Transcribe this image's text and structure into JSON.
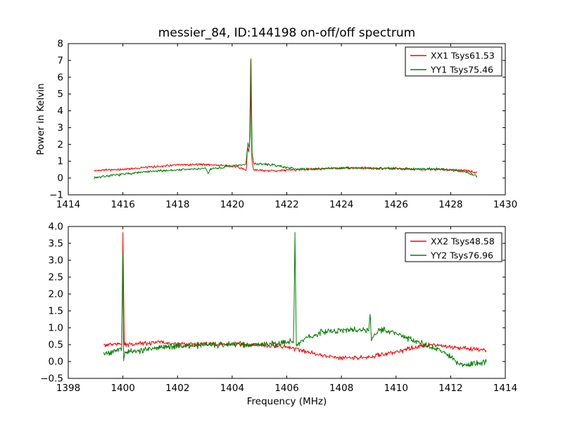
{
  "figure": {
    "background": "#ffffff",
    "title": "messier_84, ID:144198 on-off/off spectrum"
  },
  "chart_data": [
    {
      "type": "line",
      "title": "messier_84, ID:144198 on-off/off spectrum",
      "xlabel": "",
      "ylabel": "Power in Kelvin",
      "xlim": [
        1414,
        1430
      ],
      "ylim": [
        -1,
        8
      ],
      "xticks": [
        1414,
        1416,
        1418,
        1420,
        1422,
        1424,
        1426,
        1428,
        1430
      ],
      "xtick_labels": [
        "1414",
        "1416",
        "1418",
        "1420",
        "1422",
        "1424",
        "1426",
        "1428",
        "1430"
      ],
      "yticks": [
        -1,
        0,
        1,
        2,
        3,
        4,
        5,
        6,
        7,
        8
      ],
      "ytick_labels": [
        "−1",
        "0",
        "1",
        "2",
        "3",
        "4",
        "5",
        "6",
        "7",
        "8"
      ],
      "grid": false,
      "legend_position": "upper right",
      "sample_step": 0.02,
      "series": [
        {
          "name": "XX1 Tsys61.53",
          "color": "#ff0000",
          "noise": 0.05,
          "seed": 42,
          "keypoints": [
            [
              1414.95,
              0.42
            ],
            [
              1415.3,
              0.5
            ],
            [
              1415.8,
              0.48
            ],
            [
              1416.3,
              0.56
            ],
            [
              1417.0,
              0.65
            ],
            [
              1417.6,
              0.74
            ],
            [
              1418.2,
              0.78
            ],
            [
              1418.8,
              0.82
            ],
            [
              1419.3,
              0.78
            ],
            [
              1419.8,
              0.74
            ],
            [
              1420.2,
              0.66
            ],
            [
              1420.45,
              0.5
            ],
            [
              1420.52,
              0.42
            ],
            [
              1420.56,
              1.85,
              1
            ],
            [
              1420.6,
              1.55,
              1
            ],
            [
              1420.64,
              2.0,
              1
            ],
            [
              1420.68,
              7.0,
              1
            ],
            [
              1420.72,
              1.2,
              1
            ],
            [
              1420.78,
              0.5
            ],
            [
              1421.2,
              0.42
            ],
            [
              1421.8,
              0.45
            ],
            [
              1422.5,
              0.5
            ],
            [
              1423.2,
              0.55
            ],
            [
              1424.0,
              0.6
            ],
            [
              1424.8,
              0.58
            ],
            [
              1425.5,
              0.55
            ],
            [
              1426.3,
              0.55
            ],
            [
              1427.0,
              0.5
            ],
            [
              1427.8,
              0.52
            ],
            [
              1428.5,
              0.45
            ],
            [
              1428.95,
              0.32
            ]
          ]
        },
        {
          "name": "YY1 Tsys75.46",
          "color": "#008000",
          "noise": 0.055,
          "seed": 7,
          "keypoints": [
            [
              1414.95,
              0.02
            ],
            [
              1415.4,
              0.12
            ],
            [
              1415.9,
              0.2
            ],
            [
              1416.4,
              0.3
            ],
            [
              1417.0,
              0.38
            ],
            [
              1417.6,
              0.45
            ],
            [
              1418.2,
              0.5
            ],
            [
              1418.8,
              0.55
            ],
            [
              1419.05,
              0.55
            ],
            [
              1419.12,
              0.25,
              1
            ],
            [
              1419.2,
              0.55
            ],
            [
              1419.6,
              0.62
            ],
            [
              1420.0,
              0.7
            ],
            [
              1420.3,
              0.75
            ],
            [
              1420.5,
              0.8
            ],
            [
              1420.58,
              2.1,
              1
            ],
            [
              1420.62,
              1.8,
              1
            ],
            [
              1420.66,
              2.45,
              1
            ],
            [
              1420.69,
              7.1,
              1
            ],
            [
              1420.73,
              1.5,
              1
            ],
            [
              1420.8,
              0.85
            ],
            [
              1421.2,
              0.82
            ],
            [
              1421.6,
              0.75
            ],
            [
              1422.0,
              0.62
            ],
            [
              1422.6,
              0.52
            ],
            [
              1423.4,
              0.55
            ],
            [
              1424.2,
              0.6
            ],
            [
              1425.0,
              0.6
            ],
            [
              1425.8,
              0.58
            ],
            [
              1426.6,
              0.55
            ],
            [
              1427.4,
              0.55
            ],
            [
              1428.0,
              0.48
            ],
            [
              1428.6,
              0.35
            ],
            [
              1428.95,
              0.12
            ]
          ]
        }
      ]
    },
    {
      "type": "line",
      "title": "",
      "xlabel": "Frequency (MHz)",
      "ylabel": "",
      "xlim": [
        1398,
        1414
      ],
      "ylim": [
        -0.5,
        4.0
      ],
      "xticks": [
        1398,
        1400,
        1402,
        1404,
        1406,
        1408,
        1410,
        1412,
        1414
      ],
      "xtick_labels": [
        "1398",
        "1400",
        "1402",
        "1404",
        "1406",
        "1408",
        "1410",
        "1412",
        "1414"
      ],
      "yticks": [
        -0.5,
        0.0,
        0.5,
        1.0,
        1.5,
        2.0,
        2.5,
        3.0,
        3.5,
        4.0
      ],
      "ytick_labels": [
        "−0.5",
        "0.0",
        "0.5",
        "1.0",
        "1.5",
        "2.0",
        "2.5",
        "3.0",
        "3.5",
        "4.0"
      ],
      "grid": false,
      "legend_position": "upper right",
      "sample_step": 0.02,
      "series": [
        {
          "name": "XX2 Tsys48.58",
          "color": "#ff0000",
          "noise": 0.05,
          "seed": 99,
          "keypoints": [
            [
              1399.3,
              0.5
            ],
            [
              1399.96,
              0.52
            ],
            [
              1400.0,
              3.82,
              1
            ],
            [
              1400.05,
              0.5,
              1
            ],
            [
              1400.6,
              0.52
            ],
            [
              1401.3,
              0.58
            ],
            [
              1402.0,
              0.52
            ],
            [
              1402.7,
              0.5
            ],
            [
              1403.4,
              0.52
            ],
            [
              1404.1,
              0.52
            ],
            [
              1404.8,
              0.5
            ],
            [
              1405.4,
              0.48
            ],
            [
              1406.0,
              0.42
            ],
            [
              1406.6,
              0.32
            ],
            [
              1407.2,
              0.2
            ],
            [
              1407.8,
              0.12
            ],
            [
              1408.4,
              0.1
            ],
            [
              1409.0,
              0.13
            ],
            [
              1409.6,
              0.22
            ],
            [
              1410.2,
              0.32
            ],
            [
              1410.8,
              0.45
            ],
            [
              1411.3,
              0.5
            ],
            [
              1411.8,
              0.45
            ],
            [
              1412.3,
              0.4
            ],
            [
              1412.8,
              0.38
            ],
            [
              1413.3,
              0.33
            ]
          ]
        },
        {
          "name": "YY2 Tsys76.96",
          "color": "#008000",
          "noise": 0.07,
          "seed": 5,
          "keypoints": [
            [
              1399.3,
              0.22
            ],
            [
              1399.7,
              0.3
            ],
            [
              1399.96,
              0.42
            ],
            [
              1400.0,
              3.2,
              1
            ],
            [
              1400.03,
              0.02,
              1
            ],
            [
              1400.1,
              0.3
            ],
            [
              1400.6,
              0.32
            ],
            [
              1401.2,
              0.42
            ],
            [
              1401.9,
              0.45
            ],
            [
              1402.6,
              0.48
            ],
            [
              1403.3,
              0.5
            ],
            [
              1404.0,
              0.5
            ],
            [
              1404.7,
              0.5
            ],
            [
              1405.4,
              0.52
            ],
            [
              1406.0,
              0.58
            ],
            [
              1406.25,
              0.6
            ],
            [
              1406.3,
              3.72,
              1
            ],
            [
              1406.35,
              0.45,
              1
            ],
            [
              1406.7,
              0.7
            ],
            [
              1407.2,
              0.85
            ],
            [
              1407.7,
              0.92
            ],
            [
              1408.2,
              0.95
            ],
            [
              1408.7,
              0.95
            ],
            [
              1409.0,
              0.92
            ],
            [
              1409.05,
              1.4,
              1
            ],
            [
              1409.1,
              0.65,
              1
            ],
            [
              1409.4,
              0.95
            ],
            [
              1409.7,
              0.9
            ],
            [
              1410.0,
              0.82
            ],
            [
              1410.4,
              0.7
            ],
            [
              1410.8,
              0.58
            ],
            [
              1411.2,
              0.45
            ],
            [
              1411.6,
              0.32
            ],
            [
              1412.0,
              0.15
            ],
            [
              1412.4,
              -0.12
            ],
            [
              1412.8,
              -0.08
            ],
            [
              1413.1,
              -0.05
            ],
            [
              1413.3,
              0.02
            ]
          ]
        }
      ]
    }
  ]
}
